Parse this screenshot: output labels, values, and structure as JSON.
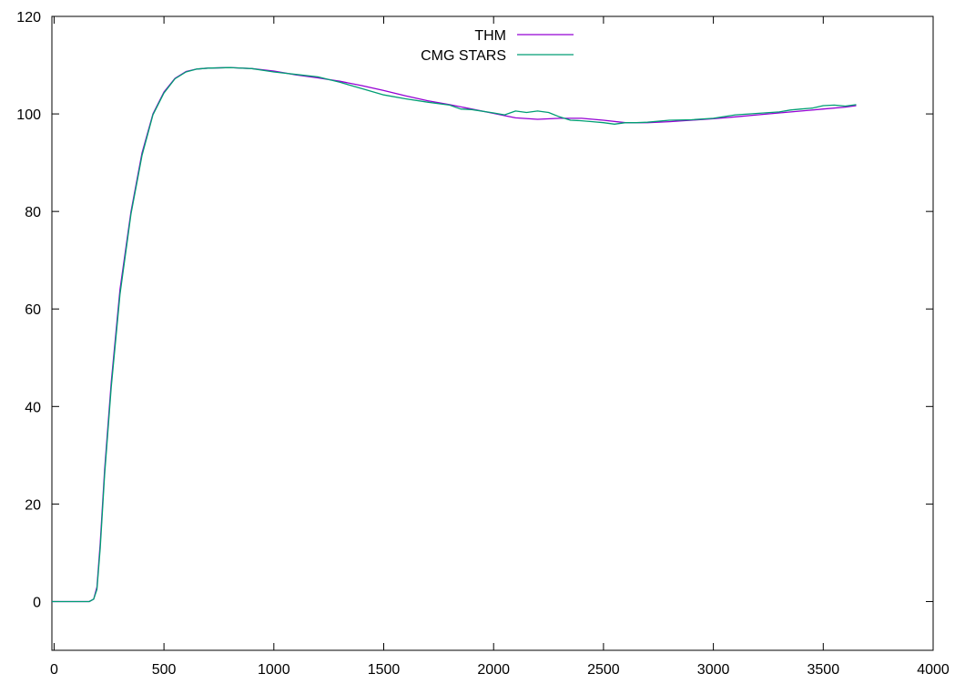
{
  "chart_data": {
    "type": "line",
    "xlim": [
      -10,
      4000
    ],
    "ylim": [
      -10,
      120
    ],
    "xticks": [
      0,
      500,
      1000,
      1500,
      2000,
      2500,
      3000,
      3500,
      4000
    ],
    "yticks": [
      0,
      20,
      40,
      60,
      80,
      100,
      120
    ],
    "grid": false,
    "legend_position": "top-center",
    "series": [
      {
        "name": "THM",
        "color": "#9400d3",
        "points": [
          [
            -10,
            0
          ],
          [
            160,
            0
          ],
          [
            180,
            0.5
          ],
          [
            195,
            3
          ],
          [
            210,
            12
          ],
          [
            230,
            27
          ],
          [
            260,
            45
          ],
          [
            300,
            64
          ],
          [
            350,
            80
          ],
          [
            400,
            92
          ],
          [
            450,
            100
          ],
          [
            500,
            104.5
          ],
          [
            550,
            107.3
          ],
          [
            600,
            108.7
          ],
          [
            650,
            109.2
          ],
          [
            700,
            109.4
          ],
          [
            800,
            109.5
          ],
          [
            900,
            109.3
          ],
          [
            1000,
            108.8
          ],
          [
            1100,
            108
          ],
          [
            1200,
            107.4
          ],
          [
            1300,
            106.7
          ],
          [
            1400,
            105.8
          ],
          [
            1500,
            104.8
          ],
          [
            1600,
            103.7
          ],
          [
            1700,
            102.7
          ],
          [
            1800,
            101.9
          ],
          [
            1900,
            101
          ],
          [
            2000,
            100.1
          ],
          [
            2100,
            99.2
          ],
          [
            2200,
            98.9
          ],
          [
            2300,
            99.1
          ],
          [
            2400,
            99.1
          ],
          [
            2500,
            98.7
          ],
          [
            2600,
            98.2
          ],
          [
            2700,
            98.2
          ],
          [
            2800,
            98.4
          ],
          [
            2900,
            98.7
          ],
          [
            3000,
            99
          ],
          [
            3100,
            99.4
          ],
          [
            3200,
            99.8
          ],
          [
            3300,
            100.2
          ],
          [
            3400,
            100.6
          ],
          [
            3500,
            101
          ],
          [
            3600,
            101.4
          ],
          [
            3650,
            101.7
          ]
        ]
      },
      {
        "name": "CMG STARS",
        "color": "#009e73",
        "points": [
          [
            -10,
            0
          ],
          [
            160,
            0
          ],
          [
            180,
            0.5
          ],
          [
            195,
            2.5
          ],
          [
            210,
            11
          ],
          [
            230,
            26
          ],
          [
            260,
            44
          ],
          [
            300,
            63
          ],
          [
            350,
            79.5
          ],
          [
            400,
            91.5
          ],
          [
            450,
            99.8
          ],
          [
            500,
            104.3
          ],
          [
            550,
            107.2
          ],
          [
            600,
            108.6
          ],
          [
            650,
            109.2
          ],
          [
            700,
            109.4
          ],
          [
            800,
            109.5
          ],
          [
            900,
            109.3
          ],
          [
            1000,
            108.6
          ],
          [
            1100,
            108.1
          ],
          [
            1200,
            107.6
          ],
          [
            1300,
            106.5
          ],
          [
            1400,
            105.2
          ],
          [
            1500,
            103.9
          ],
          [
            1600,
            103.1
          ],
          [
            1700,
            102.4
          ],
          [
            1800,
            101.8
          ],
          [
            1850,
            101
          ],
          [
            1900,
            100.9
          ],
          [
            2000,
            100.2
          ],
          [
            2050,
            99.8
          ],
          [
            2100,
            100.6
          ],
          [
            2150,
            100.3
          ],
          [
            2200,
            100.6
          ],
          [
            2250,
            100.3
          ],
          [
            2300,
            99.4
          ],
          [
            2350,
            98.7
          ],
          [
            2400,
            98.6
          ],
          [
            2450,
            98.4
          ],
          [
            2500,
            98.2
          ],
          [
            2550,
            97.9
          ],
          [
            2600,
            98.2
          ],
          [
            2650,
            98.2
          ],
          [
            2700,
            98.3
          ],
          [
            2800,
            98.7
          ],
          [
            2900,
            98.8
          ],
          [
            3000,
            99.1
          ],
          [
            3100,
            99.8
          ],
          [
            3200,
            100.1
          ],
          [
            3300,
            100.4
          ],
          [
            3350,
            100.8
          ],
          [
            3400,
            101
          ],
          [
            3450,
            101.2
          ],
          [
            3500,
            101.7
          ],
          [
            3550,
            101.8
          ],
          [
            3600,
            101.6
          ],
          [
            3650,
            101.9
          ]
        ]
      }
    ]
  }
}
